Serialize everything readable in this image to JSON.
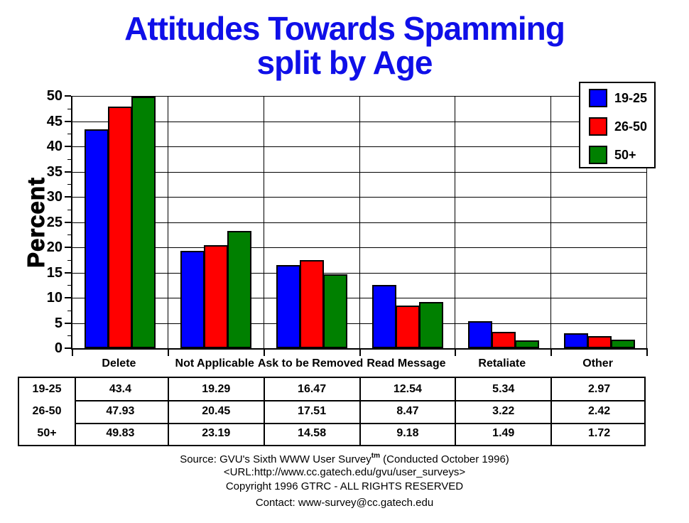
{
  "title": {
    "line1": "Attitudes Towards Spamming",
    "line2": "split by Age",
    "color": "#0f0fe8"
  },
  "chart_data": {
    "type": "bar",
    "title": "Attitudes Towards Spamming split by Age",
    "categories": [
      "Delete",
      "Not Applicable",
      "Ask to be Removed",
      "Read Message",
      "Retaliate",
      "Other"
    ],
    "series": [
      {
        "name": "19-25",
        "color": "#0000ff",
        "values": [
          43.4,
          19.29,
          16.47,
          12.54,
          5.34,
          2.97
        ]
      },
      {
        "name": "26-50",
        "color": "#ff0000",
        "values": [
          47.93,
          20.45,
          17.51,
          8.47,
          3.22,
          2.42
        ]
      },
      {
        "name": "50+",
        "color": "#008000",
        "values": [
          49.83,
          23.19,
          14.58,
          9.18,
          1.49,
          1.72
        ]
      }
    ],
    "xlabel": "",
    "ylabel": "Percent",
    "ylim": [
      0,
      50
    ],
    "ytick_step": 5,
    "ytick_minor_step": 2.5,
    "grid": true,
    "legend_position": "top-right",
    "axis_color": "#000000",
    "grid_color": "#000000"
  },
  "table": {
    "row_labels": [
      "19-25",
      "26-50",
      "50+"
    ]
  },
  "footer": {
    "source_prefix": "Source: GVU's Sixth WWW User Survey",
    "source_sup": "tm",
    "source_suffix": " (Conducted October 1996)",
    "url": "<URL:http://www.cc.gatech.edu/gvu/user_surveys>",
    "copyright": "Copyright 1996 GTRC -  ALL RIGHTS RESERVED",
    "contact": "Contact: www-survey@cc.gatech.edu"
  }
}
